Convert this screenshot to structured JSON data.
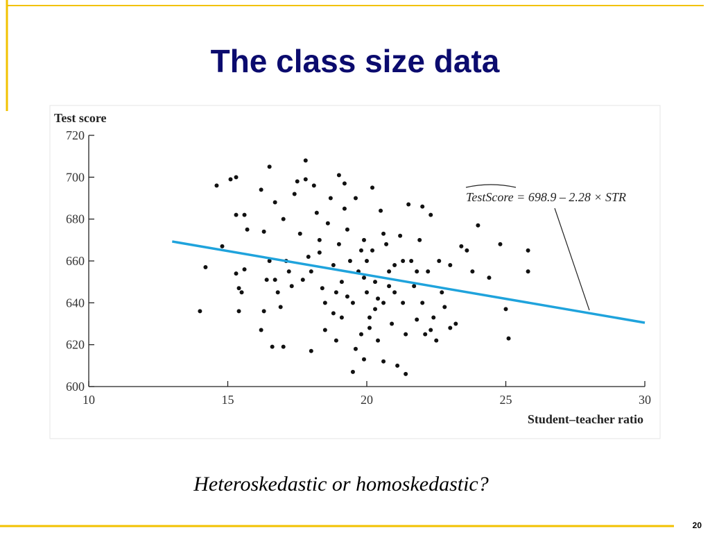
{
  "slide": {
    "title": "The class size data",
    "caption": "Heteroskedastic or homoskedastic?",
    "page_number": "20"
  },
  "chart_data": {
    "type": "scatter",
    "y_label": "Test score",
    "x_label": "Student–teacher ratio",
    "annotation": "TestScore = 698.9 – 2.28 × STR",
    "color": "#111111",
    "xlim": [
      10,
      30
    ],
    "xticks": [
      10,
      15,
      20,
      25,
      30
    ],
    "ylim": [
      600,
      720
    ],
    "yticks": [
      600,
      620,
      640,
      660,
      680,
      700,
      720
    ],
    "x": [
      14,
      14.2,
      14.6,
      14.8,
      15.1,
      15.3,
      15.3,
      15.3,
      15.4,
      15.5,
      15.6,
      15.7,
      15.6,
      15.4,
      16.2,
      16.3,
      16.2,
      16.3,
      16.4,
      16.5,
      16.5,
      16.6,
      16.7,
      16.7,
      16.8,
      16.9,
      17,
      17,
      17.1,
      17.2,
      17.3,
      17.4,
      17.5,
      17.6,
      17.7,
      17.8,
      17.8,
      17.9,
      18,
      18,
      18.1,
      18.2,
      18.3,
      18.4,
      18.5,
      18.5,
      18.6,
      18.7,
      18.8,
      18.9,
      18.9,
      19,
      19,
      19.1,
      19.1,
      19.2,
      19.3,
      19.4,
      19.5,
      19.5,
      19.6,
      19.7,
      19.8,
      19.9,
      19.9,
      20,
      20,
      20.1,
      20.2,
      20.2,
      20.3,
      20.4,
      20.5,
      20.6,
      20.6,
      20.7,
      20.8,
      20.9,
      21,
      21,
      21.1,
      21.2,
      21.3,
      21.4,
      21.4,
      21.5,
      21.6,
      21.7,
      21.8,
      21.9,
      22,
      22,
      22.1,
      22.2,
      22.3,
      22.4,
      22.5,
      22.6,
      22.7,
      22.8,
      23,
      23,
      23.2,
      23.4,
      23.6,
      23.8,
      24,
      24.4,
      24.8,
      25,
      25.1,
      25.8,
      25.8,
      18.3,
      19.3,
      20.3,
      21.3,
      19.8,
      20.8,
      19.2,
      20.6,
      21.8,
      18.8,
      20.1,
      19.6,
      22.3,
      19.9,
      20.4
    ],
    "values": [
      636,
      657,
      696,
      667,
      699,
      700,
      682,
      654,
      636,
      645,
      682,
      675,
      656,
      647,
      694,
      674,
      627,
      636,
      651,
      660,
      705,
      619,
      688,
      651,
      645,
      638,
      680,
      619,
      660,
      655,
      648,
      692,
      698,
      673,
      651,
      708,
      699,
      662,
      617,
      655,
      696,
      683,
      664,
      647,
      640,
      627,
      678,
      690,
      658,
      645,
      622,
      701,
      668,
      650,
      633,
      697,
      675,
      660,
      640,
      607,
      690,
      655,
      625,
      670,
      613,
      645,
      660,
      633,
      695,
      665,
      650,
      622,
      684,
      640,
      612,
      668,
      655,
      630,
      658,
      645,
      610,
      672,
      640,
      625,
      606,
      687,
      660,
      648,
      632,
      670,
      686,
      640,
      625,
      655,
      682,
      633,
      622,
      660,
      645,
      638,
      628,
      658,
      630,
      667,
      665,
      655,
      677,
      652,
      668,
      637,
      623,
      665,
      655,
      670,
      643,
      637,
      660,
      665,
      648,
      685,
      673,
      655,
      635,
      628,
      618,
      627,
      652,
      642
    ],
    "fit": {
      "color": "#1fa3dc",
      "x": [
        13,
        30
      ],
      "values": [
        669.3,
        630.5
      ]
    }
  }
}
